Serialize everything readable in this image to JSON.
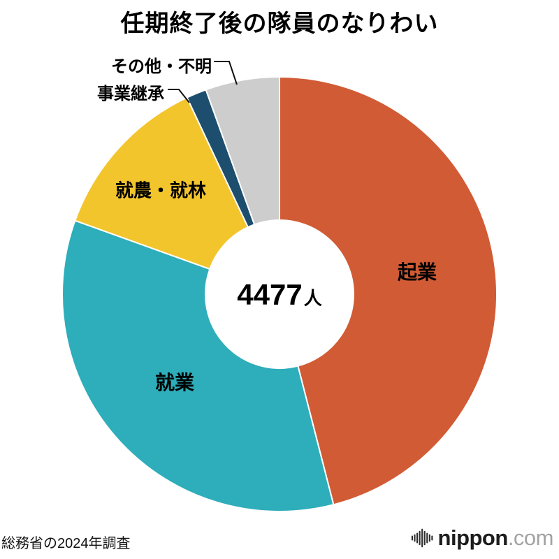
{
  "page": {
    "title": "任期終了後の隊員のなりわい",
    "source_note": "総務省の2024年調査"
  },
  "center": {
    "value": "4477",
    "unit": "人"
  },
  "logo": {
    "brand": "nippon",
    "suffix": ".com",
    "icon": "soundwave-bars-icon"
  },
  "chart_data": {
    "type": "pie",
    "donut": true,
    "title": "任期終了後の隊員のなりわい",
    "center_label": "4477人",
    "total": 4477,
    "categories": [
      "起業",
      "就業",
      "就農・就林",
      "事業継承",
      "その他・不明"
    ],
    "values": [
      46.0,
      34.5,
      12.5,
      1.5,
      5.5
    ],
    "values_unit": "percent-estimated",
    "colors": [
      "#d15b35",
      "#2eadba",
      "#f3c52d",
      "#1e4e6d",
      "#cdcdcd"
    ],
    "slice_ids": [
      "kigyou",
      "shugyou",
      "shuno-shurin",
      "jigyo-keisho",
      "sonota-fumei"
    ],
    "start_angle_deg": 0,
    "direction": "clockwise",
    "inner_radius_ratio": 0.34,
    "legend": "none",
    "label_placement": [
      "inside",
      "inside",
      "inside",
      "callout",
      "callout"
    ]
  }
}
